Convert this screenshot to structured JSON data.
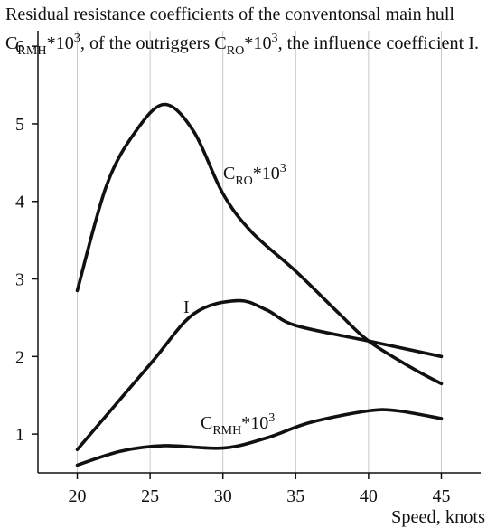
{
  "chart_data": {
    "type": "line",
    "title": [
      [
        {
          "text": "Residual resistance coefficients of the conventonsal main hull"
        }
      ],
      [
        {
          "text": "C"
        },
        {
          "text": "RMH",
          "shift": "sub"
        },
        {
          "text": "*10"
        },
        {
          "text": "3",
          "shift": "sup"
        },
        {
          "text": ", of the outriggers C"
        },
        {
          "text": "RO",
          "shift": "sub"
        },
        {
          "text": "*10"
        },
        {
          "text": "3",
          "shift": "sup"
        },
        {
          "text": ", the influence coefficient I."
        }
      ]
    ],
    "xlabel": "Speed, knots",
    "xlim": [
      17.3,
      47.7
    ],
    "ylim": [
      0.5,
      6.2
    ],
    "xticks": [
      20,
      25,
      30,
      35,
      40,
      45
    ],
    "yticks": [
      1,
      2,
      3,
      4,
      5,
      6
    ],
    "grid": "x",
    "series": [
      {
        "color": "#111111",
        "label": [
          {
            "text": "C"
          },
          {
            "text": "RO",
            "shift": "sub"
          },
          {
            "text": "*10"
          },
          {
            "text": "3",
            "shift": "sup"
          }
        ],
        "x": [
          20,
          22,
          24,
          26,
          28,
          30,
          32,
          35,
          38,
          40,
          43,
          45
        ],
        "values": [
          2.85,
          4.2,
          4.9,
          5.25,
          4.9,
          4.1,
          3.6,
          3.1,
          2.55,
          2.2,
          1.85,
          1.65
        ]
      },
      {
        "color": "#111111",
        "label": [
          {
            "text": "I"
          }
        ],
        "x": [
          20,
          25,
          28,
          31,
          33,
          35,
          40,
          45
        ],
        "values": [
          0.8,
          1.9,
          2.55,
          2.72,
          2.6,
          2.4,
          2.2,
          2.0
        ]
      },
      {
        "color": "#111111",
        "label": [
          {
            "text": "C"
          },
          {
            "text": "RMH",
            "shift": "sub"
          },
          {
            "text": "*10"
          },
          {
            "text": "3",
            "shift": "sup"
          }
        ],
        "x": [
          20,
          23,
          26,
          30,
          33,
          36,
          40,
          42,
          45
        ],
        "values": [
          0.6,
          0.78,
          0.85,
          0.82,
          0.95,
          1.15,
          1.3,
          1.3,
          1.2
        ]
      }
    ]
  }
}
